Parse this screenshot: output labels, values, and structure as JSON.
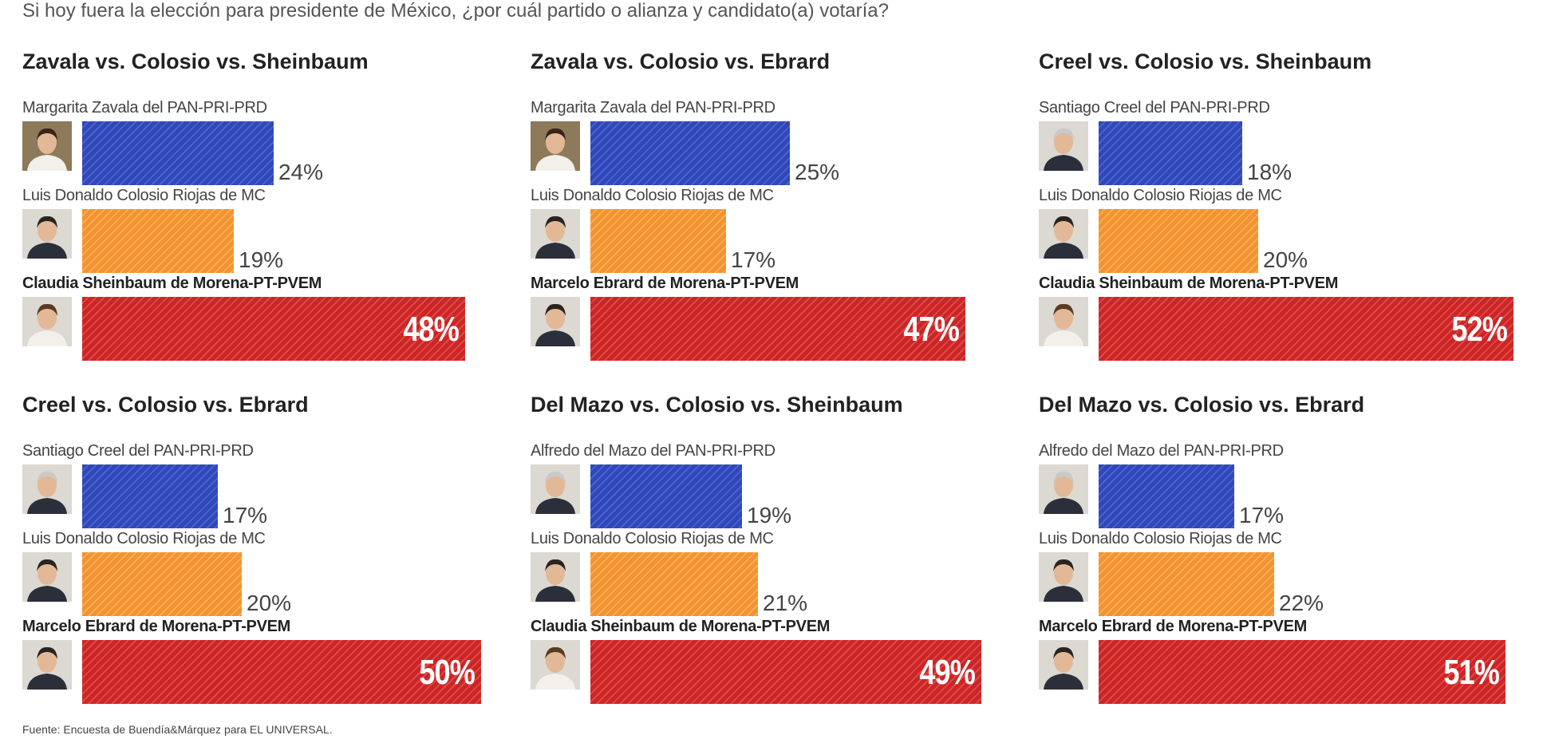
{
  "header": {
    "question": "Si hoy fuera la elección para presidente de México, ¿por cuál partido o alianza y candidato(a) votaría?"
  },
  "footer": {
    "source": "Fuente: Encuesta de Buendía&Márquez para EL UNIVERSAL."
  },
  "colors": {
    "pan_pri_prd": "#3047b8",
    "mc": "#f4922e",
    "morena": "#cc2525"
  },
  "chart_data": [
    {
      "type": "bar",
      "title": "Zavala vs. Colosio vs. Sheinbaum",
      "categories": [
        "Margarita Zavala del PAN-PRI-PRD",
        "Luis Donaldo Colosio Riojas de MC",
        "Claudia Sheinbaum de Morena-PT-PVEM"
      ],
      "values": [
        24,
        19,
        48
      ],
      "labels": [
        "24%",
        "19%",
        "48%"
      ]
    },
    {
      "type": "bar",
      "title": "Zavala vs. Colosio vs. Ebrard",
      "categories": [
        "Margarita Zavala del PAN-PRI-PRD",
        "Luis Donaldo Colosio Riojas de MC",
        "Marcelo Ebrard de Morena-PT-PVEM"
      ],
      "values": [
        25,
        17,
        47
      ],
      "labels": [
        "25%",
        "17%",
        "47%"
      ]
    },
    {
      "type": "bar",
      "title": "Creel vs. Colosio vs. Sheinbaum",
      "categories": [
        "Santiago Creel del PAN-PRI-PRD",
        "Luis Donaldo Colosio Riojas de MC",
        "Claudia Sheinbaum de Morena-PT-PVEM"
      ],
      "values": [
        18,
        20,
        52
      ],
      "labels": [
        "18%",
        "20%",
        "52%"
      ]
    },
    {
      "type": "bar",
      "title": "Creel vs. Colosio vs. Ebrard",
      "categories": [
        "Santiago Creel del PAN-PRI-PRD",
        "Luis Donaldo Colosio Riojas de MC",
        "Marcelo Ebrard de Morena-PT-PVEM"
      ],
      "values": [
        17,
        20,
        50
      ],
      "labels": [
        "17%",
        "20%",
        "50%"
      ]
    },
    {
      "type": "bar",
      "title": "Del Mazo vs. Colosio vs. Sheinbaum",
      "categories": [
        "Alfredo del Mazo del PAN-PRI-PRD",
        "Luis Donaldo Colosio Riojas de MC",
        "Claudia Sheinbaum de Morena-PT-PVEM"
      ],
      "values": [
        19,
        21,
        49
      ],
      "labels": [
        "19%",
        "21%",
        "49%"
      ]
    },
    {
      "type": "bar",
      "title": "Del Mazo vs. Colosio vs. Ebrard",
      "categories": [
        "Alfredo del Mazo del PAN-PRI-PRD",
        "Luis Donaldo Colosio Riojas de MC",
        "Marcelo Ebrard de Morena-PT-PVEM"
      ],
      "values": [
        17,
        22,
        51
      ],
      "labels": [
        "17%",
        "22%",
        "51%"
      ]
    }
  ]
}
